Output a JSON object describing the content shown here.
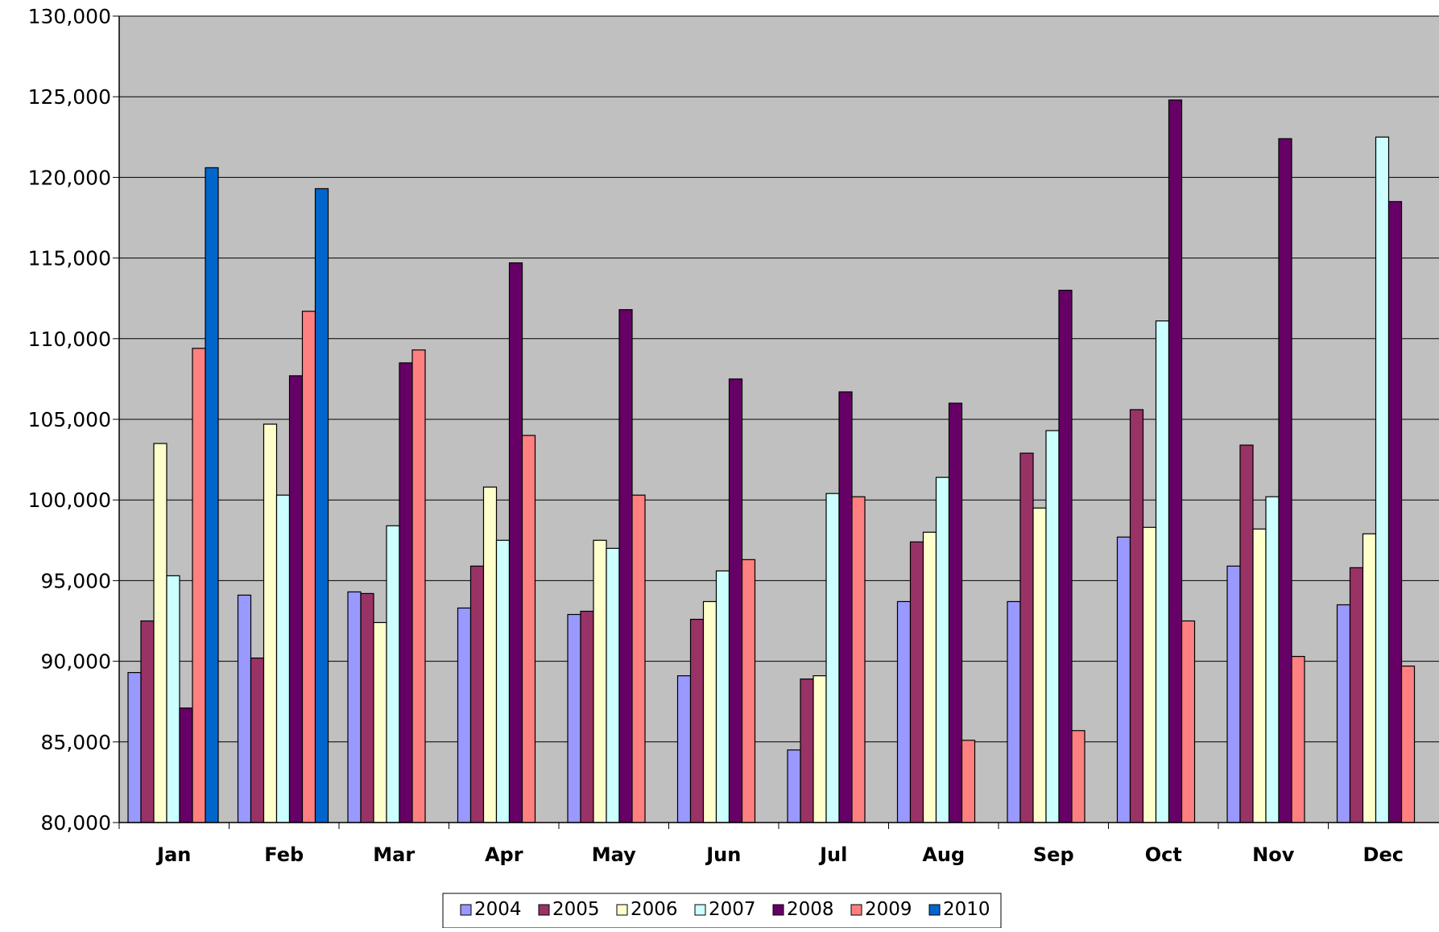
{
  "chart_data": {
    "type": "bar",
    "title": "",
    "xlabel": "",
    "ylabel": "",
    "categories": [
      "Jan",
      "Feb",
      "Mar",
      "Apr",
      "May",
      "Jun",
      "Jul",
      "Aug",
      "Sep",
      "Oct",
      "Nov",
      "Dec"
    ],
    "ylim": [
      80000,
      130000
    ],
    "yticks": [
      80000,
      85000,
      90000,
      95000,
      100000,
      105000,
      110000,
      115000,
      120000,
      125000,
      130000
    ],
    "ytick_labels": [
      "80,000",
      "85,000",
      "90,000",
      "95,000",
      "100,000",
      "105,000",
      "110,000",
      "115,000",
      "120,000",
      "125,000",
      "130,000"
    ],
    "grid": true,
    "legend_position": "bottom",
    "plot_background": "#c0c0c0",
    "series": [
      {
        "name": "2004",
        "color": "#9999ff",
        "values": [
          89300,
          94100,
          94300,
          93300,
          92900,
          89100,
          84500,
          93700,
          93700,
          97700,
          95900,
          93500
        ]
      },
      {
        "name": "2005",
        "color": "#993366",
        "values": [
          92500,
          90200,
          94200,
          95900,
          93100,
          92600,
          88900,
          97400,
          102900,
          105600,
          103400,
          95800
        ]
      },
      {
        "name": "2006",
        "color": "#ffffcc",
        "values": [
          103500,
          104700,
          92400,
          100800,
          97500,
          93700,
          89100,
          98000,
          99500,
          98300,
          98200,
          97900
        ]
      },
      {
        "name": "2007",
        "color": "#ccffff",
        "values": [
          95300,
          100300,
          98400,
          97500,
          97000,
          95600,
          100400,
          101400,
          104300,
          111100,
          100200,
          122500
        ]
      },
      {
        "name": "2008",
        "color": "#660066",
        "values": [
          87100,
          107700,
          108500,
          114700,
          111800,
          107500,
          106700,
          106000,
          113000,
          124800,
          122400,
          118500
        ]
      },
      {
        "name": "2009",
        "color": "#ff8080",
        "values": [
          109400,
          111700,
          109300,
          104000,
          100300,
          96300,
          100200,
          85100,
          85700,
          92500,
          90300,
          89700
        ]
      },
      {
        "name": "2010",
        "color": "#0066cc",
        "values": [
          120600,
          119300,
          null,
          null,
          null,
          null,
          null,
          null,
          null,
          null,
          null,
          null
        ]
      }
    ]
  }
}
